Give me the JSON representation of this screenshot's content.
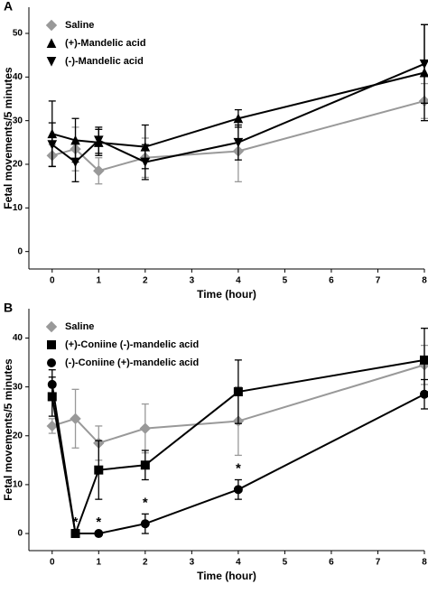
{
  "chart_data": [
    {
      "type": "line",
      "panel": "A",
      "x_label": "Time (hour)",
      "y_label": "Fetal movements/5 minutes",
      "x": [
        0,
        0.5,
        1,
        2,
        4,
        8
      ],
      "xlim": [
        -0.5,
        8
      ],
      "xticks": [
        0,
        1,
        2,
        3,
        4,
        5,
        6,
        7,
        8
      ],
      "ylim": [
        -4,
        56
      ],
      "yticks": [
        0,
        10,
        20,
        30,
        40,
        50
      ],
      "series": [
        {
          "name": "Saline",
          "color": "#999999",
          "marker": "diamond",
          "values": [
            22,
            23.5,
            18.5,
            21.5,
            23,
            34.5
          ],
          "errors": [
            2.5,
            5,
            3,
            4.5,
            7,
            4
          ]
        },
        {
          "name": "(+)-Mandelic acid",
          "color": "#000000",
          "marker": "triangle-up",
          "values": [
            27,
            25.5,
            25,
            24,
            30.5,
            41
          ],
          "errors": [
            7.5,
            5,
            3,
            5,
            2,
            11
          ]
        },
        {
          "name": "(-)-Mandelic acid",
          "color": "#000000",
          "marker": "triangle-down",
          "values": [
            24.5,
            20.5,
            25.5,
            20.5,
            25,
            43
          ],
          "errors": [
            5,
            4.5,
            3,
            4,
            4,
            9
          ]
        }
      ]
    },
    {
      "type": "line",
      "panel": "B",
      "x_label": "Time (hour)",
      "y_label": "Fetal movements/5 minutes",
      "x": [
        0,
        0.5,
        1,
        2,
        4,
        8
      ],
      "xlim": [
        -0.5,
        8
      ],
      "xticks": [
        0,
        1,
        2,
        3,
        4,
        5,
        6,
        7,
        8
      ],
      "ylim": [
        -3.5,
        46
      ],
      "yticks": [
        0,
        10,
        20,
        30,
        40
      ],
      "series": [
        {
          "name": "Saline",
          "color": "#999999",
          "marker": "diamond",
          "values": [
            22,
            23.5,
            18.5,
            21.5,
            23,
            34.5
          ],
          "errors": [
            1.5,
            6,
            3.5,
            5,
            7,
            4
          ]
        },
        {
          "name": "(+)-Coniine (-)-mandelic acid",
          "color": "#000000",
          "marker": "square",
          "values": [
            28,
            0,
            13,
            14,
            29,
            35.5
          ],
          "errors": [
            4,
            0,
            6,
            3,
            6.5,
            6.5
          ]
        },
        {
          "name": "(-)-Coniine (+)-mandelic acid",
          "color": "#000000",
          "marker": "circle",
          "values": [
            30.5,
            0,
            0,
            2,
            9,
            28.5
          ],
          "errors": [
            3,
            0,
            0,
            2,
            2,
            3
          ]
        }
      ],
      "annotations": [
        {
          "text": "*",
          "x": 0.5
        },
        {
          "text": "*",
          "x": 1
        },
        {
          "text": "*",
          "x": 2
        },
        {
          "text": "*",
          "x": 4
        }
      ]
    }
  ]
}
